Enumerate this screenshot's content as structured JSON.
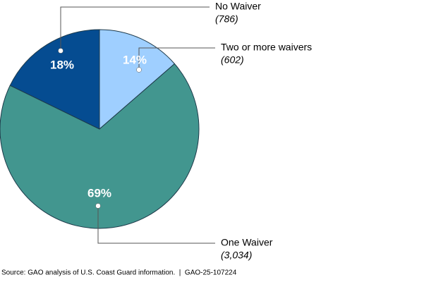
{
  "chart_data": {
    "type": "pie",
    "categories": [
      "Two or more waivers",
      "One Waiver",
      "No Waiver"
    ],
    "values": [
      602,
      3034,
      786
    ],
    "value_labels": [
      "(602)",
      "(3,034)",
      "(786)"
    ],
    "percent_labels": [
      "14%",
      "69%",
      "18%"
    ],
    "colors": [
      "#9fcfff",
      "#42968f",
      "#054c91"
    ],
    "source": "Source: GAO analysis of U.S. Coast Guard information.  |  GAO-25-107224"
  }
}
